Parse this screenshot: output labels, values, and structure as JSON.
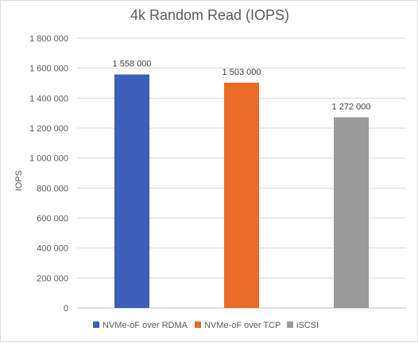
{
  "chart_data": {
    "type": "bar",
    "title": "4k Random Read (IOPS)",
    "xlabel": "",
    "ylabel": "IOPS",
    "categories": [
      "NVMe-oF over RDMA",
      "NVMe-oF over TCP",
      "iSCSI"
    ],
    "values": [
      1558000,
      1503000,
      1272000
    ],
    "value_labels": [
      "1 558 000",
      "1 503 000",
      "1 272 000"
    ],
    "colors": [
      "#3d5fba",
      "#ea6b26",
      "#9a9a9a"
    ],
    "ylim": [
      0,
      1800000
    ],
    "yticks": [
      0,
      200000,
      400000,
      600000,
      800000,
      1000000,
      1200000,
      1400000,
      1600000,
      1800000
    ],
    "ytick_labels": [
      "0",
      "200 000",
      "400 000",
      "600 000",
      "800 000",
      "1 000 000",
      "1 200 000",
      "1 400 000",
      "1 600 000",
      "1 800 000"
    ],
    "grid": true,
    "legend_position": "bottom",
    "legend_entries": [
      "NVMe-oF over RDMA",
      "NVMe-oF over TCP",
      "iSCSI"
    ]
  }
}
